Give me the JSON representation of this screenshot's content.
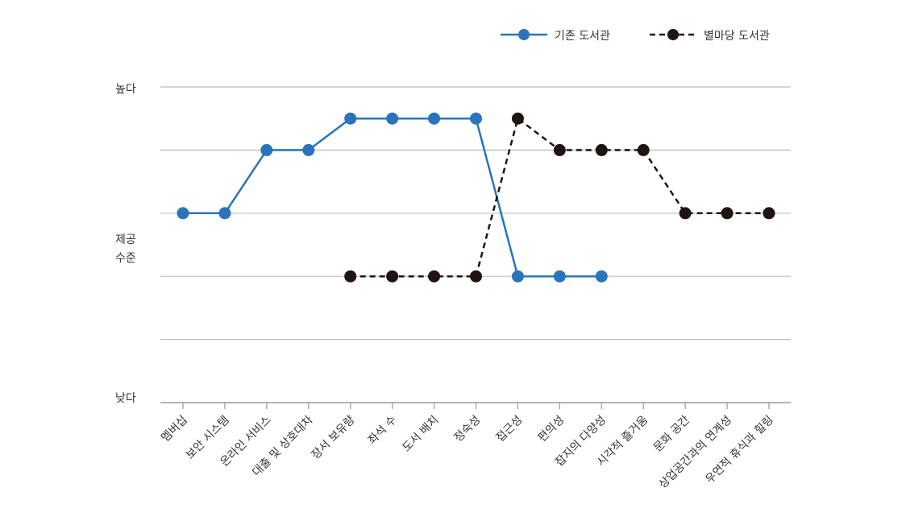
{
  "chart_data": {
    "type": "line",
    "title": "",
    "xlabel": "",
    "ylabel": "",
    "y_axis": {
      "top_label": "높다",
      "middle_label_lines": [
        "제공",
        "수준"
      ],
      "bottom_label": "낮다",
      "ylim": [
        0,
        5
      ],
      "gridlines": [
        1,
        2,
        3,
        4,
        5
      ],
      "grid": true
    },
    "categories": [
      "멤버십",
      "보안 시스템",
      "온라인 서비스",
      "대출 및 상호대차",
      "장서 보유량",
      "좌석 수",
      "도서 배치",
      "정숙성",
      "접근성",
      "편의성",
      "잡지의 다양성",
      "시각적 즐거움",
      "문화 공간",
      "상업공간과의 연계성",
      "우연적 휴식과 힐링"
    ],
    "series": [
      {
        "name": "기존 도서관",
        "style": "solid",
        "color": "#2a74bb",
        "values": [
          3.0,
          3.0,
          4.0,
          4.0,
          4.5,
          4.5,
          4.5,
          4.5,
          2.0,
          2.0,
          2.0,
          null,
          null,
          null,
          null
        ]
      },
      {
        "name": "별마당 도서관",
        "style": "dashed",
        "color": "#1f1412",
        "values": [
          null,
          null,
          null,
          null,
          2.0,
          2.0,
          2.0,
          2.0,
          4.5,
          4.0,
          4.0,
          4.0,
          3.0,
          3.0,
          3.0
        ]
      }
    ],
    "legend": {
      "position": "top-right"
    }
  }
}
